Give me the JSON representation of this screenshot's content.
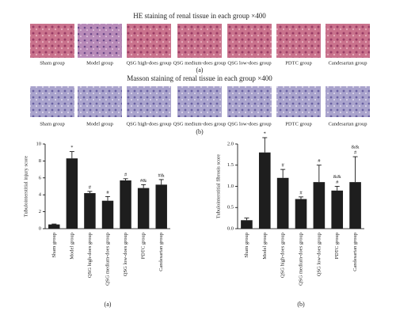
{
  "panels": [
    {
      "title": "HE staining of renal tissue in each group ×400",
      "labels": [
        "Sham group",
        "Model group",
        "QSG high-does group",
        "QSG medium-does group",
        "QSG low-does group",
        "PDTC group",
        "Candesartan group"
      ],
      "caption": "(a)"
    },
    {
      "title": "Masson staining of renal tissue in each group ×400",
      "labels": [
        "Sham group",
        "Model group",
        "QSG high-does group",
        "QSG medium-does group",
        "QSG low-does group",
        "PDTC group",
        "Candesartan group"
      ],
      "caption": "(b)"
    }
  ],
  "chart_data": [
    {
      "type": "bar",
      "ylabel": "Tubulointerstitial injury score",
      "categories": [
        "Sham group",
        "Model group",
        "QSG high-does group",
        "QSG medium-does group",
        "QSG low-does group",
        "PDTC group",
        "Candesartan group"
      ],
      "values": [
        0.5,
        8.3,
        4.2,
        3.3,
        5.7,
        4.8,
        5.2
      ],
      "errors": [
        0.05,
        0.8,
        0.2,
        0.5,
        0.2,
        0.4,
        0.6
      ],
      "annotations": [
        [],
        [
          "*"
        ],
        [
          "#"
        ],
        [
          "#"
        ],
        [
          "#"
        ],
        [
          "#&"
        ],
        [
          "#&"
        ]
      ],
      "color": "#1e1e1e",
      "ylim": [
        0,
        10
      ],
      "yticks": [
        0,
        2,
        4,
        6,
        8,
        10
      ],
      "caption": "(a)"
    },
    {
      "type": "bar",
      "ylabel": "Tubulointerstitial fibrosis score",
      "categories": [
        "Sham group",
        "Model group",
        "QSG high-does group",
        "QSG medium-does group",
        "QSG low-does group",
        "PDTC group",
        "Candesartan group"
      ],
      "values": [
        0.2,
        1.8,
        1.2,
        0.7,
        1.1,
        0.9,
        1.1
      ],
      "errors": [
        0.05,
        0.35,
        0.2,
        0.05,
        0.4,
        0.1,
        0.6
      ],
      "annotations": [
        [],
        [
          "*"
        ],
        [
          "#"
        ],
        [
          "#"
        ],
        [
          "#"
        ],
        [
          "&&",
          "#"
        ],
        [
          "&&",
          "#"
        ]
      ],
      "color": "#1e1e1e",
      "ylim": [
        0,
        2
      ],
      "yticks": [
        {
          "value": 0,
          "label": "0.0"
        },
        {
          "value": 0.5,
          "label": "0.5"
        },
        {
          "value": 1,
          "label": "1.0"
        },
        {
          "value": 1.5,
          "label": "1.5"
        },
        {
          "value": 2,
          "label": "2.0"
        }
      ],
      "caption": "(b)"
    }
  ]
}
